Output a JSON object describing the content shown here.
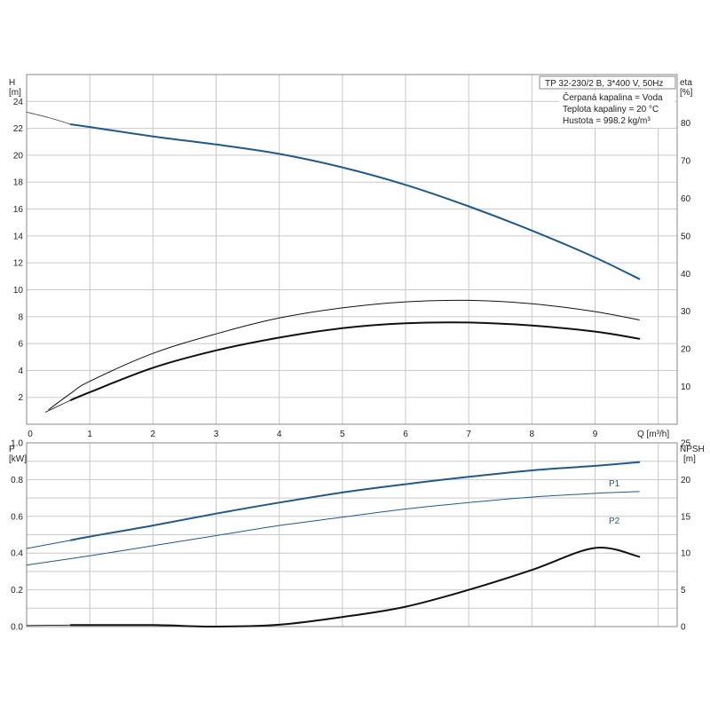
{
  "info": {
    "title": "TP 32-230/2 B, 3*400 V, 50Hz",
    "liquid": "Čerpaná kapalina = Voda",
    "temperature": "Teplota kapaliny = 20 °C",
    "density": "Hustota = 998.2 kg/m³"
  },
  "colors": {
    "blue": "#1f5a8c",
    "black": "#111111",
    "grid": "#c9c9c9"
  },
  "chart_data": [
    {
      "type": "line",
      "xlabel": "Q [m³/h]",
      "x_ticks": [
        "0",
        "1",
        "2",
        "3",
        "4",
        "5",
        "6",
        "7",
        "8",
        "9"
      ],
      "xlim": [
        0,
        10.3
      ],
      "y_left": {
        "label_top": "H",
        "label_unit": "[m]",
        "ticks": [
          "2",
          "4",
          "6",
          "8",
          "10",
          "12",
          "14",
          "16",
          "18",
          "20",
          "22",
          "24"
        ],
        "lim": [
          0,
          26
        ]
      },
      "y_right": {
        "label_top": "eta",
        "label_unit": "[%]",
        "ticks": [
          "10",
          "20",
          "30",
          "40",
          "50",
          "60",
          "70",
          "80"
        ],
        "lim": [
          0,
          92.86
        ]
      },
      "grid": true,
      "series": [
        {
          "axis": "left",
          "color": "#1f5a8c",
          "width": 2,
          "x": [
            0.7,
            1,
            2,
            3,
            4,
            5,
            6,
            7,
            8,
            9,
            9.7
          ],
          "y": [
            22.3,
            22.1,
            21.4,
            20.8,
            20.1,
            19.1,
            17.8,
            16.2,
            14.4,
            12.4,
            10.8
          ]
        },
        {
          "axis": "left",
          "color": "#444444",
          "width": 0.8,
          "x": [
            0,
            0.35,
            0.7
          ],
          "y": [
            23.2,
            22.8,
            22.3
          ]
        },
        {
          "axis": "right",
          "color": "#111111",
          "width": 1,
          "x": [
            0.35,
            0.7,
            1,
            2,
            3,
            4,
            5,
            6,
            7,
            8,
            9,
            9.7
          ],
          "y": [
            3.9,
            8.2,
            11.4,
            18.8,
            24.0,
            28.2,
            30.9,
            32.5,
            32.9,
            32.0,
            29.9,
            27.7
          ]
        },
        {
          "axis": "right",
          "color": "#111111",
          "width": 2,
          "x": [
            0.7,
            1,
            2,
            3,
            4,
            5,
            6,
            7,
            8,
            9,
            9.7
          ],
          "y": [
            6.4,
            8.5,
            15.0,
            19.6,
            23.0,
            25.5,
            26.8,
            27.0,
            26.2,
            24.6,
            22.7
          ]
        },
        {
          "axis": "right",
          "color": "#111111",
          "width": 0.8,
          "x": [
            0.3,
            0.7
          ],
          "y": [
            3.2,
            6.4
          ]
        }
      ]
    },
    {
      "type": "line",
      "xlim": [
        0,
        10.3
      ],
      "y_left": {
        "label_top": "P",
        "label_unit": "[kW]",
        "ticks": [
          "0.0",
          "0.2",
          "0.4",
          "0.6",
          "0.8",
          "1.0"
        ],
        "lim": [
          0,
          1.0
        ]
      },
      "y_right": {
        "label_top": "NPSH",
        "label_unit": "[m]",
        "ticks": [
          "0",
          "5",
          "10",
          "15",
          "20",
          "25"
        ],
        "lim": [
          0,
          25
        ]
      },
      "grid": true,
      "series": [
        {
          "name": "P1",
          "axis": "left",
          "color": "#1f5a8c",
          "width": 2,
          "x": [
            0.7,
            1,
            2,
            3,
            4,
            5,
            6,
            7,
            8,
            9,
            9.7
          ],
          "y": [
            0.47,
            0.49,
            0.55,
            0.615,
            0.675,
            0.73,
            0.775,
            0.815,
            0.85,
            0.875,
            0.895
          ]
        },
        {
          "axis": "left",
          "color": "#1f5a8c",
          "width": 1,
          "x": [
            0,
            0.7
          ],
          "y": [
            0.425,
            0.47
          ]
        },
        {
          "name": "P2",
          "axis": "left",
          "color": "#1f5a8c",
          "width": 1,
          "x": [
            0,
            1,
            2,
            3,
            4,
            5,
            6,
            7,
            8,
            9,
            9.7
          ],
          "y": [
            0.335,
            0.385,
            0.44,
            0.495,
            0.55,
            0.595,
            0.64,
            0.675,
            0.705,
            0.725,
            0.735
          ]
        },
        {
          "axis": "right",
          "color": "#111111",
          "width": 2,
          "x": [
            0.7,
            2,
            3,
            4,
            5,
            6,
            7,
            8,
            9,
            9.7
          ],
          "y": [
            0.2,
            0.2,
            0.0,
            0.25,
            1.3,
            2.7,
            5.0,
            7.7,
            10.7,
            9.5
          ]
        },
        {
          "axis": "right",
          "color": "#111111",
          "width": 0.8,
          "x": [
            0,
            0.7
          ],
          "y": [
            0.15,
            0.2
          ]
        }
      ]
    }
  ]
}
